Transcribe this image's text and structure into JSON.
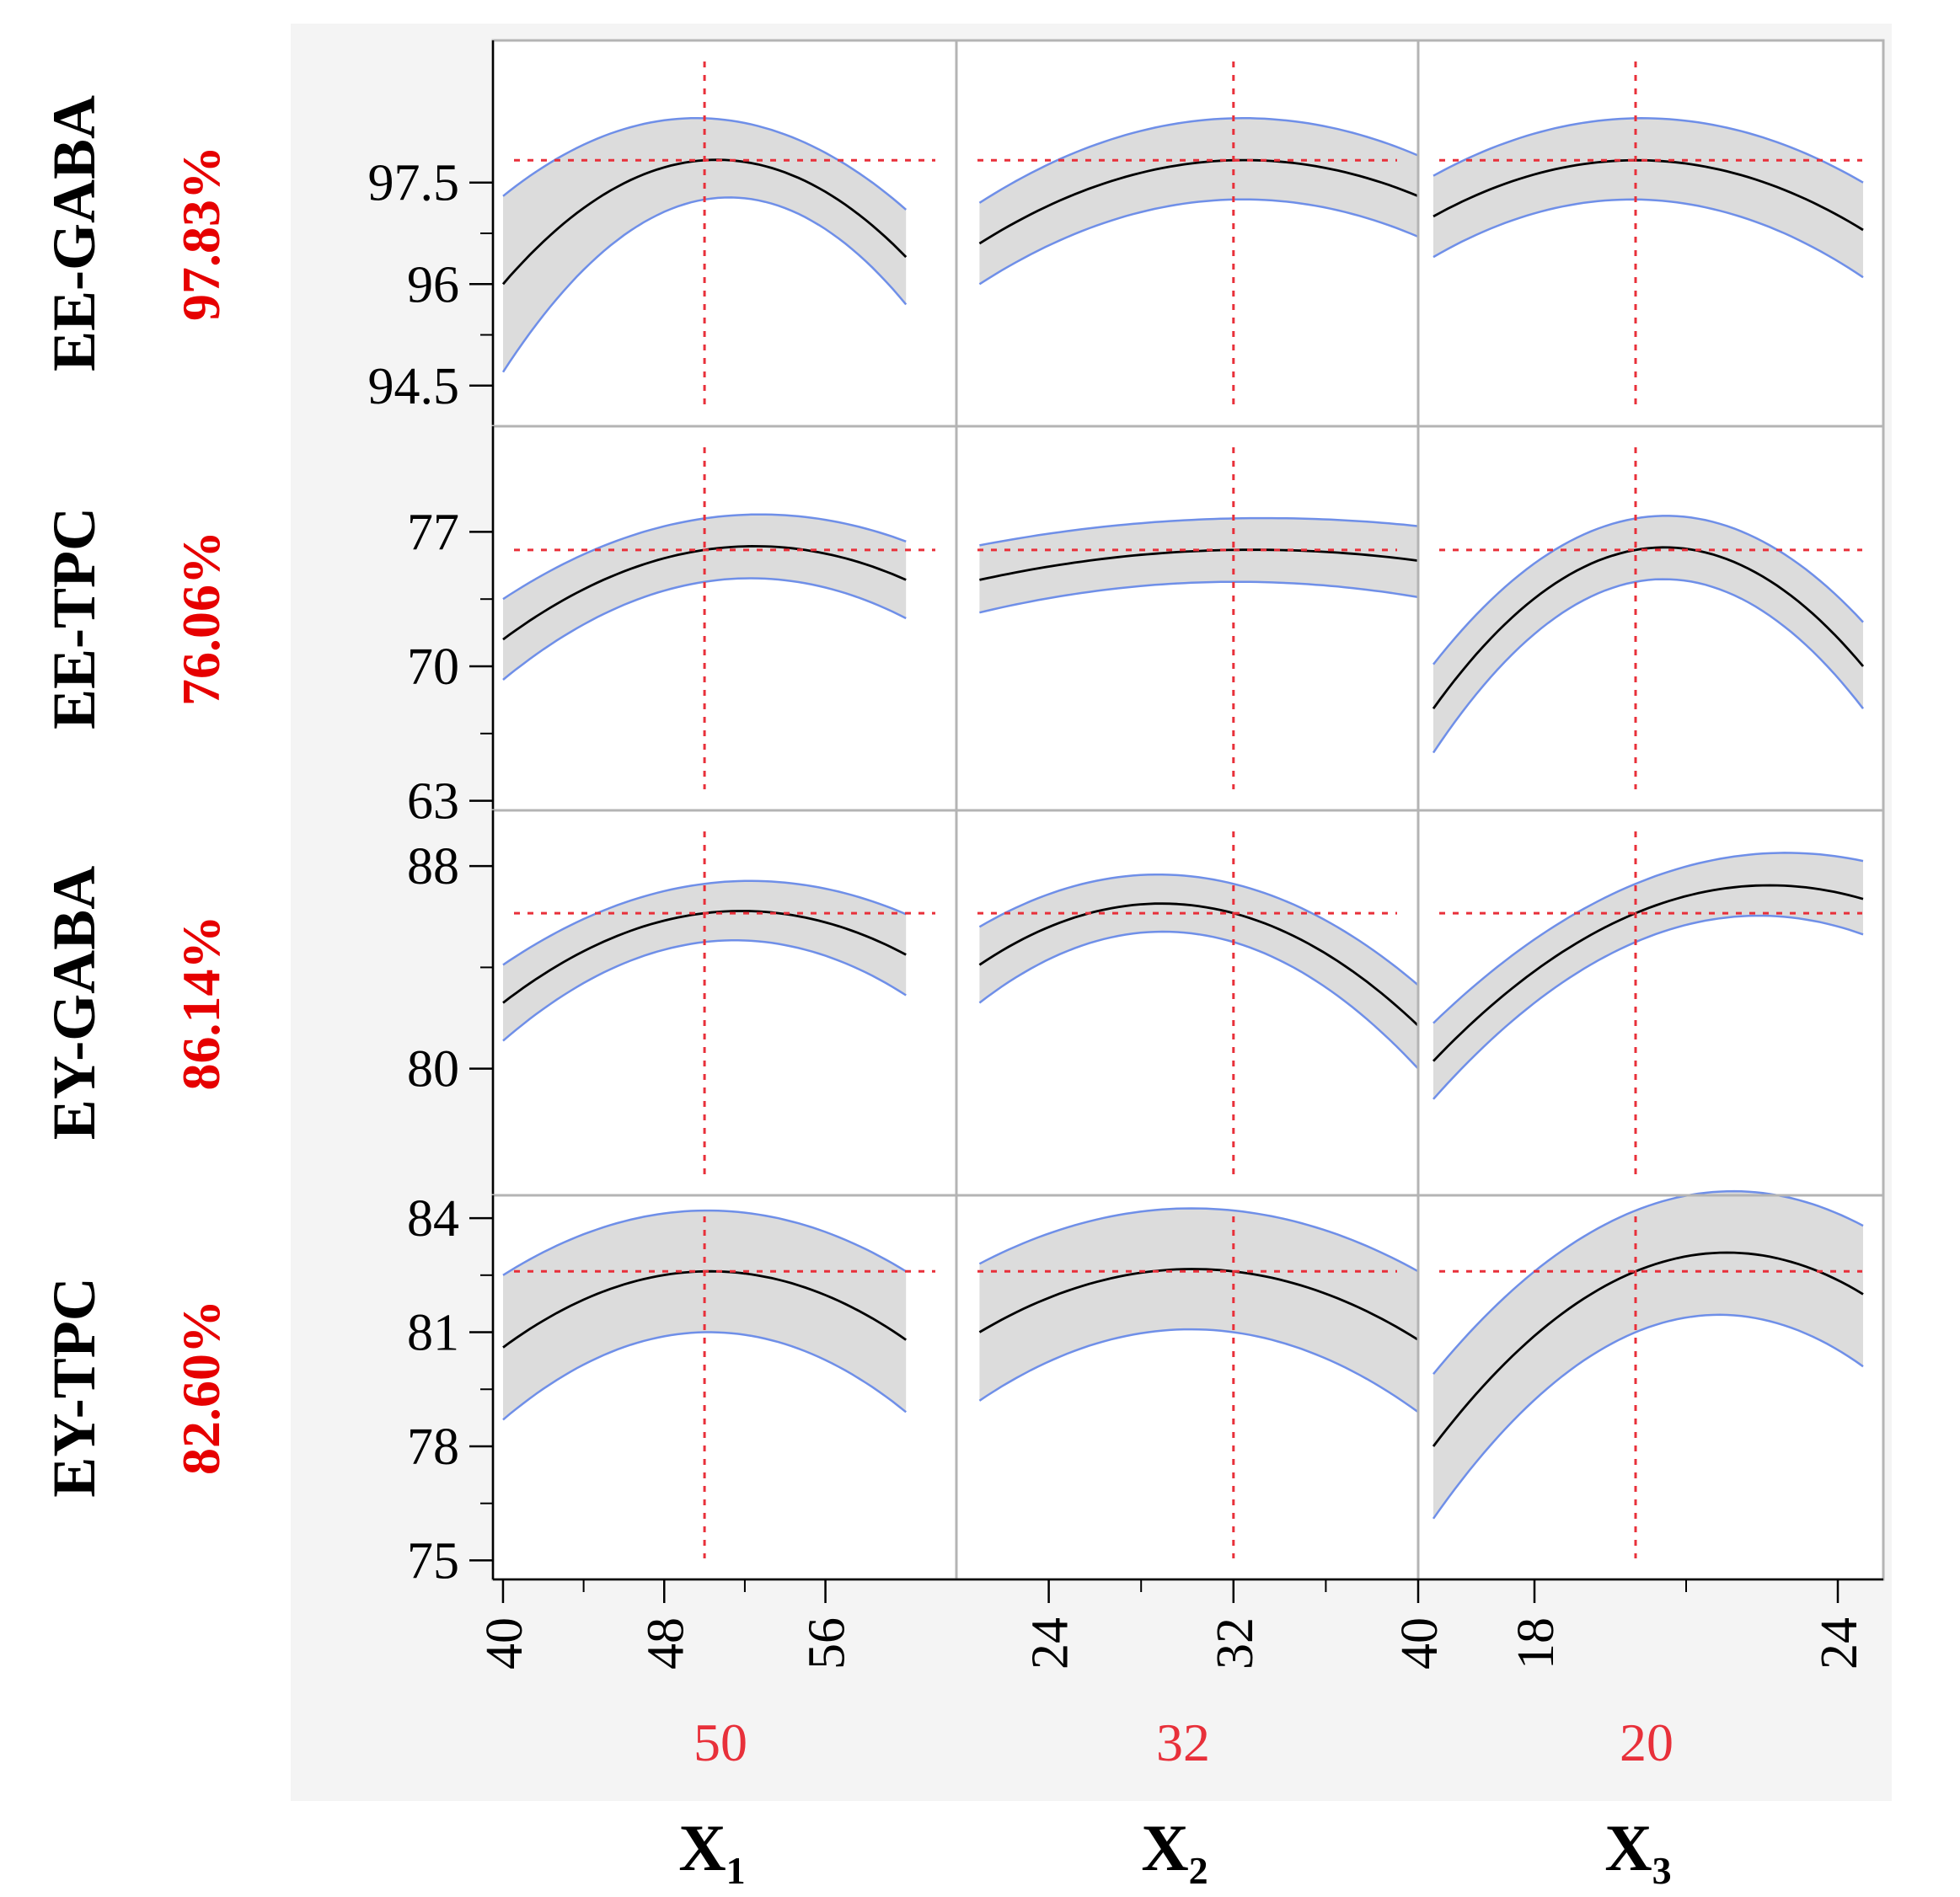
{
  "chart_data": {
    "type": "line",
    "description_visible": "Prediction profiler grid: 4 responses x 3 factors, each cell shows a predicted curve with a shaded confidence band and red dashed crosshairs at the current settings.",
    "factors": [
      {
        "name": "X",
        "sub": "1",
        "current": 50,
        "current_label": "50",
        "range": [
          39.5,
          62.5
        ],
        "ticks": [
          40,
          48,
          56
        ],
        "tick_labels": [
          "40",
          "48",
          "56"
        ]
      },
      {
        "name": "X",
        "sub": "2",
        "current": 32,
        "current_label": "32",
        "range": [
          20,
          40
        ],
        "ticks": [
          24,
          32,
          40
        ],
        "tick_labels": [
          "24",
          "32",
          "40"
        ]
      },
      {
        "name": "X",
        "sub": "3",
        "current": 20,
        "current_label": "20",
        "range": [
          15.7,
          24.9
        ],
        "ticks": [
          18,
          24
        ],
        "tick_labels": [
          "18",
          "24"
        ]
      }
    ],
    "responses": [
      {
        "name": "EE-GABA",
        "value_label": "97.83%",
        "current_y": 97.83,
        "ylim": [
          93.9,
          99.6
        ],
        "ticks": [
          94.5,
          96,
          97.5
        ],
        "tick_labels": [
          "94.5",
          "96",
          "97.5"
        ],
        "curves": [
          {
            "x": [
              40,
              50,
              60
            ],
            "y": [
              96.0,
              97.83,
              96.4
            ],
            "band": [
              [
                94.7,
                97.3
              ],
              [
                97.25,
                98.45
              ],
              [
                95.7,
                97.1
              ]
            ]
          },
          {
            "x": [
              21,
              32,
              40
            ],
            "y": [
              96.6,
              97.83,
              97.3
            ],
            "band": [
              [
                96.0,
                97.2
              ],
              [
                97.25,
                98.45
              ],
              [
                96.7,
                97.9
              ]
            ]
          },
          {
            "x": [
              16,
              20,
              24.5
            ],
            "y": [
              97.0,
              97.83,
              96.8
            ],
            "band": [
              [
                96.4,
                97.6
              ],
              [
                97.25,
                98.45
              ],
              [
                96.1,
                97.5
              ]
            ]
          }
        ]
      },
      {
        "name": "EE-TPC",
        "value_label": "76.06%",
        "current_y": 76.06,
        "ylim": [
          62.5,
          82.5
        ],
        "ticks": [
          63,
          70,
          77
        ],
        "tick_labels": [
          "63",
          "70",
          "77"
        ],
        "curves": [
          {
            "x": [
              40,
              50,
              60
            ],
            "y": [
              71.4,
              76.06,
              74.5
            ],
            "band": [
              [
                69.3,
                73.5
              ],
              [
                74.4,
                77.7
              ],
              [
                72.5,
                76.5
              ]
            ]
          },
          {
            "x": [
              21,
              32,
              40
            ],
            "y": [
              74.5,
              76.06,
              75.5
            ],
            "band": [
              [
                72.8,
                76.3
              ],
              [
                74.4,
                77.7
              ],
              [
                73.6,
                77.3
              ]
            ]
          },
          {
            "x": [
              16,
              20,
              24.5
            ],
            "y": [
              67.8,
              76.06,
              70.0
            ],
            "band": [
              [
                65.5,
                70.1
              ],
              [
                74.4,
                77.7
              ],
              [
                67.8,
                72.3
              ]
            ]
          }
        ]
      },
      {
        "name": "EY-GABA",
        "value_label": "86.14%",
        "current_y": 86.14,
        "ylim": [
          75.0,
          90.2
        ],
        "ticks": [
          80,
          88
        ],
        "tick_labels": [
          "80",
          "88"
        ],
        "curves": [
          {
            "x": [
              40,
              50,
              60
            ],
            "y": [
              82.6,
              86.14,
              84.5
            ],
            "band": [
              [
                81.1,
                84.1
              ],
              [
                85.0,
                87.3
              ],
              [
                82.9,
                86.1
              ]
            ]
          },
          {
            "x": [
              21,
              32,
              40
            ],
            "y": [
              84.1,
              86.14,
              81.7
            ],
            "band": [
              [
                82.6,
                85.6
              ],
              [
                85.0,
                87.3
              ],
              [
                80.0,
                83.3
              ]
            ]
          },
          {
            "x": [
              16,
              20,
              24.5
            ],
            "y": [
              80.3,
              86.14,
              86.7
            ],
            "band": [
              [
                78.8,
                81.8
              ],
              [
                85.0,
                87.3
              ],
              [
                85.3,
                88.2
              ]
            ]
          }
        ]
      },
      {
        "name": "EY-TPC",
        "value_label": "82.60%",
        "current_y": 82.6,
        "ylim": [
          74.5,
          84.6
        ],
        "ticks": [
          75,
          78,
          81,
          84
        ],
        "tick_labels": [
          "75",
          "78",
          "81",
          "84"
        ],
        "curves": [
          {
            "x": [
              40,
              50,
              60
            ],
            "y": [
              80.6,
              82.6,
              80.8
            ],
            "band": [
              [
                78.7,
                82.5
              ],
              [
                81.0,
                84.2
              ],
              [
                78.9,
                82.6
              ]
            ]
          },
          {
            "x": [
              21,
              32,
              40
            ],
            "y": [
              81.0,
              82.6,
              80.8
            ],
            "band": [
              [
                79.2,
                82.8
              ],
              [
                81.0,
                84.2
              ],
              [
                78.9,
                82.6
              ]
            ]
          },
          {
            "x": [
              16,
              20,
              24.5
            ],
            "y": [
              78.0,
              82.6,
              82.0
            ],
            "band": [
              [
                76.1,
                79.9
              ],
              [
                81.0,
                84.2
              ],
              [
                80.1,
                83.8
              ]
            ]
          }
        ]
      }
    ],
    "grid": false,
    "colors": {
      "curve": "#000000",
      "band_fill": "#dcdcdc",
      "band_edge": "#6f8fe8",
      "crosshair": "#e8303a",
      "cell_border": "#b4b4b4",
      "frame_bg": "#f4f4f4"
    }
  }
}
